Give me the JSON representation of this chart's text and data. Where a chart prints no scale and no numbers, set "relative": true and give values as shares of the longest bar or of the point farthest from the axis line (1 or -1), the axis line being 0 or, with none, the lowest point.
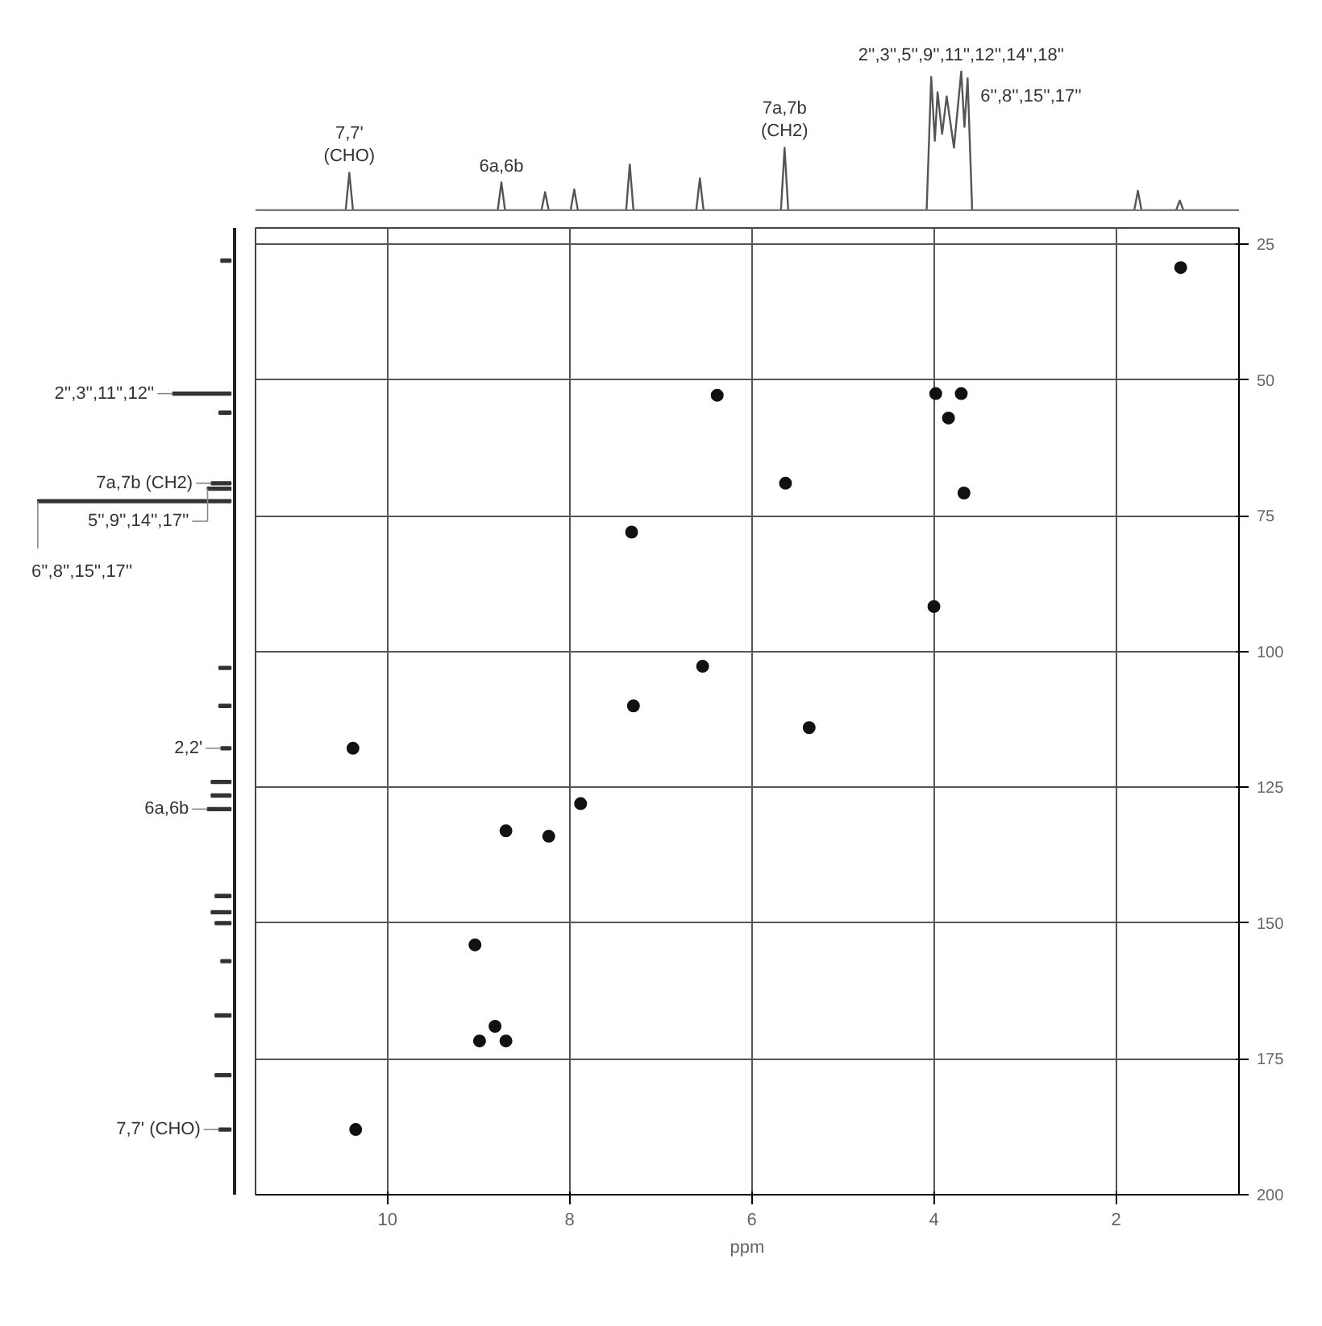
{
  "chart_data": [
    {
      "type": "line",
      "relative": true,
      "tick_labels": false,
      "color": "#555555",
      "xlim": [
        11.45,
        0.65
      ],
      "xticks": [
        10,
        8,
        6,
        4,
        2
      ],
      "x": [
        11.45,
        10.46,
        10.42,
        10.38,
        8.79,
        8.75,
        8.71,
        8.31,
        8.27,
        8.23,
        7.99,
        7.95,
        7.91,
        7.38,
        7.34,
        7.3,
        6.61,
        6.57,
        6.53,
        5.68,
        5.64,
        5.6,
        4.08,
        4.03,
        3.99,
        3.96,
        3.91,
        3.86,
        3.78,
        3.7,
        3.665,
        3.63,
        3.58,
        1.8,
        1.76,
        1.72,
        1.34,
        1.3,
        1.26,
        0.65
      ],
      "values": [
        0,
        0,
        0.27,
        0,
        0,
        0.2,
        0,
        0,
        0.13,
        0,
        0,
        0.15,
        0,
        0,
        0.33,
        0,
        0,
        0.23,
        0,
        0,
        0.45,
        0,
        0,
        0.96,
        0.5,
        0.85,
        0.55,
        0.82,
        0.45,
        1,
        0.6,
        0.95,
        0,
        0,
        0.14,
        0,
        0,
        0.07,
        0,
        0
      ],
      "annotations": [
        {
          "text": "7,7'\n(CHO)",
          "x": 10.42,
          "y": 0.27
        },
        {
          "text": "6a,6b",
          "x": 8.75,
          "y": 0.2
        },
        {
          "text": "7a,7b\n(CH2)",
          "x": 5.64,
          "y": 0.45
        },
        {
          "text": "2'',3'',5'',9'',11'',12'',14'',18''",
          "x": 3.7,
          "y": 1
        },
        {
          "text": "6'',8'',15'',17''",
          "x": 3.63,
          "y": 0.82
        }
      ]
    },
    {
      "type": "bar",
      "orientation": "horizontal",
      "relative": true,
      "tick_labels": false,
      "ylim": [
        200,
        22
      ],
      "color": "#333333",
      "x": [
        28,
        52.5,
        56,
        69,
        70,
        72.3,
        103,
        110,
        117.8,
        124,
        126.5,
        129,
        145,
        148,
        150,
        157,
        167,
        178,
        188
      ],
      "values": [
        0.05,
        0.3,
        0.06,
        0.1,
        0.12,
        1,
        0.06,
        0.06,
        0.05,
        0.1,
        0.1,
        0.12,
        0.08,
        0.1,
        0.08,
        0.05,
        0.08,
        0.08,
        0.06
      ],
      "annotations": [
        {
          "text": "2'',3'',11'',12''",
          "x": 0.3,
          "y": 52.5
        },
        {
          "text": "7a,7b (CH2)",
          "x": 0.1,
          "y": 69
        },
        {
          "text": "5'',9'',14'',17''",
          "x": 0.12,
          "y": 70
        },
        {
          "text": "6'',8'',15'',17''",
          "x": 1,
          "y": 72.3
        },
        {
          "text": "2,2'",
          "x": 0.05,
          "y": 117.8
        },
        {
          "text": "6a,6b",
          "x": 0.12,
          "y": 129
        },
        {
          "text": "7,7' (CHO)",
          "x": 0.06,
          "y": 188
        }
      ]
    },
    {
      "type": "scatter",
      "marker": "circle",
      "color": "#111111",
      "grid": true,
      "xlabel": "ppm",
      "xlim": [
        11.45,
        0.65
      ],
      "ylim": [
        200,
        22
      ],
      "xticks": [
        10,
        8,
        6,
        4,
        2
      ],
      "yticks": [
        25,
        50,
        75,
        100,
        125,
        150,
        175,
        200
      ],
      "x": [
        1.29,
        6.38,
        3.98,
        3.7,
        3.84,
        5.63,
        3.67,
        7.32,
        4.0,
        6.54,
        7.3,
        5.37,
        10.38,
        7.88,
        8.7,
        8.23,
        9.04,
        8.82,
        8.99,
        8.7,
        10.35
      ],
      "values": [
        29.3,
        52.8,
        52.5,
        52.5,
        57,
        69,
        70.8,
        78,
        91.7,
        102.7,
        110,
        114,
        117.8,
        128,
        133,
        134,
        154,
        169,
        171.7,
        171.7,
        188
      ]
    }
  ]
}
